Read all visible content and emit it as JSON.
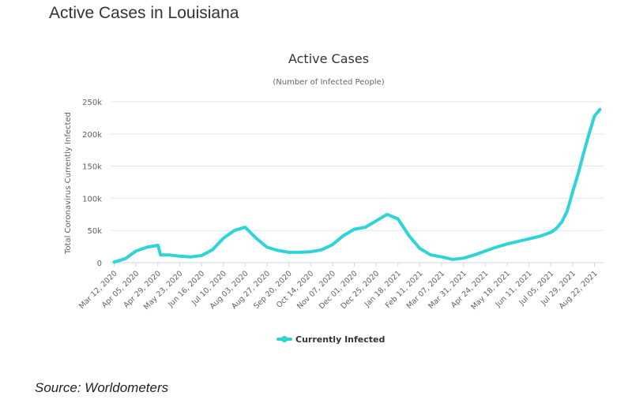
{
  "page": {
    "title": "Active Cases in Louisiana",
    "source": "Source: Worldometers"
  },
  "chart_data": {
    "type": "line",
    "title": "Active Cases",
    "subtitle": "(Number of Infected People)",
    "ylabel": "Total Coronavirus Currently Infected",
    "xlabel": "",
    "ylim": [
      0,
      250000
    ],
    "yticks": [
      0,
      50000,
      100000,
      150000,
      200000,
      250000
    ],
    "ytick_labels": [
      "0",
      "50k",
      "100k",
      "150k",
      "200k",
      "250k"
    ],
    "grid": true,
    "legend_position": "bottom-center",
    "colors": {
      "series": "#2ed4d6",
      "grid": "#e6e6e6",
      "axis_text": "#606060",
      "title": "#333333"
    },
    "xtick_labels": [
      "Mar 12, 2020",
      "Apr 05, 2020",
      "Apr 29, 2020",
      "May 23, 2020",
      "Jun 16, 2020",
      "Jul 10, 2020",
      "Aug 03, 2020",
      "Aug 27, 2020",
      "Sep 20, 2020",
      "Oct 14, 2020",
      "Nov 07, 2020",
      "Dec 01, 2020",
      "Dec 25, 2020",
      "Jan 18, 2021",
      "Feb 11, 2021",
      "Mar 07, 2021",
      "Mar 31, 2021",
      "Apr 24, 2021",
      "May 18, 2021",
      "Jun 11, 2021",
      "Jul 05, 2021",
      "Jul 29, 2021",
      "Aug 22, 2021"
    ],
    "series": [
      {
        "name": "Currently Infected",
        "x": [
          "Mar 12, 2020",
          "Mar 24, 2020",
          "Apr 05, 2020",
          "Apr 17, 2020",
          "Apr 29, 2020",
          "May 02, 2020",
          "May 11, 2020",
          "May 23, 2020",
          "Jun 04, 2020",
          "Jun 16, 2020",
          "Jun 28, 2020",
          "Jul 10, 2020",
          "Jul 22, 2020",
          "Aug 03, 2020",
          "Aug 15, 2020",
          "Aug 27, 2020",
          "Sep 08, 2020",
          "Sep 20, 2020",
          "Oct 02, 2020",
          "Oct 14, 2020",
          "Oct 26, 2020",
          "Nov 07, 2020",
          "Nov 19, 2020",
          "Dec 01, 2020",
          "Dec 13, 2020",
          "Dec 25, 2020",
          "Jan 06, 2021",
          "Jan 18, 2021",
          "Jan 30, 2021",
          "Feb 11, 2021",
          "Feb 23, 2021",
          "Mar 07, 2021",
          "Mar 19, 2021",
          "Mar 31, 2021",
          "Apr 12, 2021",
          "Apr 24, 2021",
          "May 06, 2021",
          "May 18, 2021",
          "May 30, 2021",
          "Jun 11, 2021",
          "Jun 23, 2021",
          "Jul 05, 2021",
          "Jul 11, 2021",
          "Jul 17, 2021",
          "Jul 23, 2021",
          "Jul 29, 2021",
          "Aug 04, 2021",
          "Aug 10, 2021",
          "Aug 16, 2021",
          "Aug 22, 2021",
          "Aug 28, 2021"
        ],
        "values": [
          1000,
          6000,
          18000,
          24000,
          27000,
          12000,
          12000,
          10000,
          9000,
          11000,
          20000,
          38000,
          50000,
          55000,
          38000,
          24000,
          19000,
          16000,
          16000,
          17000,
          20000,
          28000,
          42000,
          52000,
          55000,
          65000,
          75000,
          68000,
          42000,
          22000,
          12000,
          9000,
          5000,
          7000,
          12000,
          18000,
          24000,
          29000,
          33000,
          37000,
          41000,
          47000,
          53000,
          63000,
          80000,
          110000,
          138000,
          170000,
          200000,
          228000,
          238000
        ]
      }
    ]
  }
}
